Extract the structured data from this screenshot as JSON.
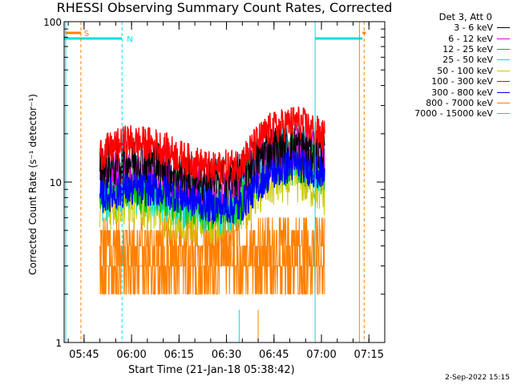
{
  "title": "RHESSI Observing Summary Count Rates, Corrected",
  "footer": "2-Sep-2022 15:15",
  "legend": {
    "header": "Det 3, Att 0",
    "items": [
      {
        "label": "3 - 6 keV",
        "color": "#000000"
      },
      {
        "label": "6 - 12 keV",
        "color": "#e000e0"
      },
      {
        "label": "12 - 25 keV",
        "color": "#00c000"
      },
      {
        "label": "25 - 50 keV",
        "color": "#00e0e0"
      },
      {
        "label": "50 - 100 keV",
        "color": "#c8c800"
      },
      {
        "label": "100 - 300 keV",
        "color": "#ff0000"
      },
      {
        "label": "300 - 800 keV",
        "color": "#0000ff"
      },
      {
        "label": "800 - 7000 keV",
        "color": "#ff8000"
      },
      {
        "label": "7000 - 15000 keV",
        "color": "#ff8000"
      }
    ]
  },
  "chart_data": {
    "type": "line",
    "title": "RHESSI Observing Summary Count Rates, Corrected",
    "xlabel": "Start Time (21-Jan-18 05:38:42)",
    "ylabel": "Corrected Count Rate (s⁻¹ detector⁻¹)",
    "yscale": "log",
    "ylim": [
      1,
      100
    ],
    "xlim_minutes": [
      "05:38:42",
      "07:20"
    ],
    "x_ticks": [
      "05:45",
      "06:00",
      "06:15",
      "06:30",
      "06:45",
      "07:00",
      "07:15"
    ],
    "y_ticks": [
      "1",
      "10",
      "100"
    ],
    "x_range_data": [
      "05:50",
      "07:01"
    ],
    "series": [
      {
        "name": "3 - 6 keV",
        "approx_level": [
          12,
          14,
          13,
          11,
          10,
          11,
          16,
          17,
          15
        ],
        "color": "#000000"
      },
      {
        "name": "6 - 12 keV",
        "approx_level": [
          11,
          13,
          12,
          10,
          9,
          10,
          15,
          16,
          14
        ],
        "color": "#e000e0"
      },
      {
        "name": "12 - 25 keV",
        "approx_level": [
          9,
          10,
          9,
          8,
          7,
          8,
          13,
          14,
          12
        ],
        "color": "#00c000"
      },
      {
        "name": "25 - 50 keV",
        "approx_level": [
          8,
          10,
          9,
          8,
          7,
          8,
          14,
          16,
          13
        ],
        "color": "#00e0e0"
      },
      {
        "name": "50 - 100 keV",
        "approx_level": [
          7,
          8,
          7,
          6,
          6,
          7,
          10,
          11,
          9
        ],
        "color": "#c8c800"
      },
      {
        "name": "100 - 300 keV",
        "approx_level": [
          15,
          18,
          17,
          14,
          12,
          13,
          21,
          24,
          19
        ],
        "color": "#ff0000"
      },
      {
        "name": "300 - 800 keV",
        "approx_level": [
          8,
          9,
          9,
          8,
          7,
          7,
          11,
          13,
          11
        ],
        "color": "#0000ff"
      },
      {
        "name": "800 - 7000 keV",
        "approx_level": [
          4.5,
          5,
          5,
          4.5,
          4,
          4.5,
          5,
          6,
          5.5
        ],
        "color": "#ff8000"
      },
      {
        "name": "7000 - 15000 keV",
        "approx_level": [
          3,
          3,
          3,
          3,
          3,
          3,
          3,
          3,
          3
        ],
        "color": "#ff8000"
      }
    ],
    "flags": [
      {
        "label": "S",
        "color": "#ff8000"
      },
      {
        "label": "N",
        "color": "#00e0e0"
      }
    ]
  }
}
